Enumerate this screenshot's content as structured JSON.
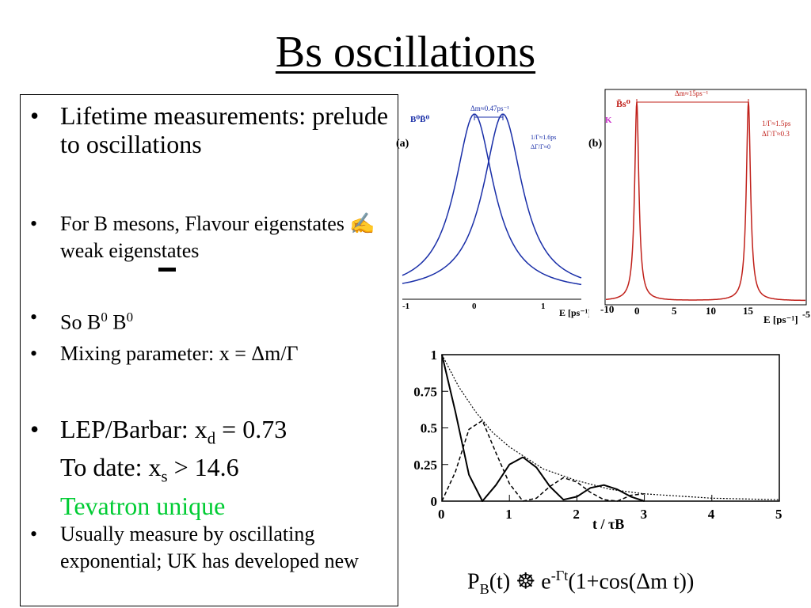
{
  "slide": {
    "title": "Bs oscillations",
    "bullets": {
      "b1": "Lifetime measurements: prelude to oscillations",
      "b2_a": "For B mesons, Flavour eigenstates",
      "b2_sym": "✍",
      "b2_b": "weak eigenstates",
      "b3_a": "So B",
      "b3_sup1": "0",
      "b3_sym": "",
      "b3_b": "B",
      "b3_sup2": "0",
      "b4": "Mixing parameter: x = Δm/Γ",
      "b5_a": "LEP/Barbar: x",
      "b5_sub1": "d",
      "b5_b": " = 0.73",
      "b5_c": "To date: x",
      "b5_sub2": "s",
      "b5_d": " > 14.6",
      "b5_e": "Tevatron unique",
      "b6": "Usually measure by oscillating exponential; UK has developed new"
    },
    "bullet_symbol": "•"
  },
  "plot_a": {
    "label": "(a)",
    "header": "B⁰B̄⁰",
    "dm_label": "Δm≈0.47ps⁻¹",
    "note1": "1/Γ≈1.6ps",
    "note2": "ΔΓ/Γ≈0",
    "xticks": [
      "-1",
      "0",
      "1"
    ],
    "xlabel": "E [ps⁻¹]",
    "color": "#1a2fa8"
  },
  "plot_b": {
    "label": "(b)",
    "header": "B̄s⁰",
    "dm_label": "Δm≈15ps⁻¹",
    "note1": "1/Γ≈1.5ps",
    "note2": "ΔΓ/Γ≈0.3",
    "xticks": [
      "-10",
      "0",
      "5",
      "10",
      "15"
    ],
    "xlabel": "E [ps⁻¹]",
    "edge_text": "-5",
    "color": "#c0201a"
  },
  "chart_data": {
    "type": "line",
    "xlabel": "t / τB",
    "xlim": [
      0,
      5
    ],
    "ylim": [
      0,
      1
    ],
    "xticks": [
      "0",
      "1",
      "2",
      "3",
      "4",
      "5"
    ],
    "yticks": [
      "0",
      "0.25",
      "0.5",
      "0.75",
      "1"
    ],
    "grid": false,
    "series": [
      {
        "x": [
          0,
          0.25,
          0.5,
          0.75,
          1,
          1.5,
          2,
          2.5,
          3,
          4,
          5
        ],
        "y": [
          1,
          0.78,
          0.61,
          0.47,
          0.37,
          0.22,
          0.14,
          0.08,
          0.05,
          0.02,
          0.01
        ]
      },
      {
        "x": [
          0,
          0.2,
          0.4,
          0.6,
          0.8,
          1.0,
          1.2,
          1.4,
          1.6,
          1.8,
          2.0,
          2.2,
          2.4,
          2.6,
          2.8,
          3.0
        ],
        "y": [
          1,
          0.61,
          0.18,
          0.0,
          0.11,
          0.25,
          0.3,
          0.23,
          0.1,
          0.01,
          0.03,
          0.09,
          0.11,
          0.08,
          0.03,
          0.0
        ]
      },
      {
        "x": [
          0,
          0.2,
          0.4,
          0.6,
          0.8,
          1.0,
          1.2,
          1.4,
          1.6,
          1.8,
          2.0,
          2.2,
          2.4,
          2.6,
          2.8,
          3.0
        ],
        "y": [
          0,
          0.2,
          0.49,
          0.55,
          0.33,
          0.12,
          0.0,
          0.02,
          0.1,
          0.16,
          0.13,
          0.06,
          0.01,
          0.0,
          0.04,
          0.05
        ]
      }
    ]
  },
  "caption": {
    "a": "P",
    "sub": "B",
    "b": "(t) ",
    "sym": "☸",
    "c": " e",
    "sup": "-Γt",
    "d": "(1+cos(Δm t))"
  }
}
